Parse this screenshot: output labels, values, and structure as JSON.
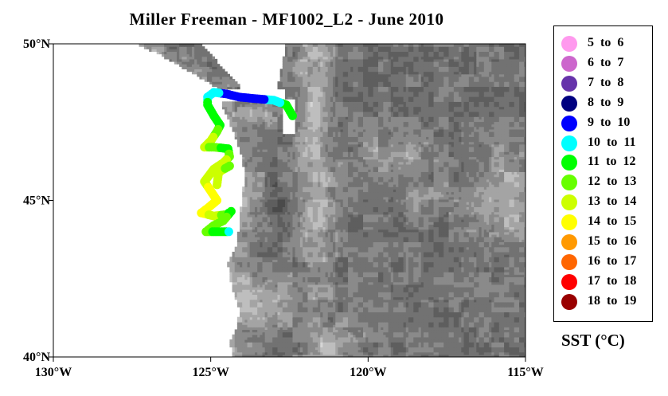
{
  "title": "Miller Freeman - MF1002_L2 - June 2010",
  "map": {
    "lon_range": [
      -130,
      -115
    ],
    "lat_range": [
      40,
      50
    ],
    "x_ticks": [
      {
        "value": -130,
        "label": "130°W"
      },
      {
        "value": -125,
        "label": "125°W"
      },
      {
        "value": -120,
        "label": "120°W"
      },
      {
        "value": -115,
        "label": "115°W"
      }
    ],
    "y_ticks": [
      {
        "value": 50,
        "label": "50°N"
      },
      {
        "value": 45,
        "label": "45°N"
      },
      {
        "value": 40,
        "label": "40°N"
      }
    ],
    "ocean_color": "#ffffff",
    "terrain_colors": [
      "#4a4a4a",
      "#5e5e5e",
      "#727272",
      "#8a8a8a",
      "#a4a4a4",
      "#bebebe",
      "#d6d6d6"
    ],
    "cruise_track": [
      {
        "lon": -122.4,
        "lat": 47.7,
        "bin": 6
      },
      {
        "lon": -122.6,
        "lat": 48.05,
        "bin": 6
      },
      {
        "lon": -123.0,
        "lat": 48.2,
        "bin": 5
      },
      {
        "lon": -123.6,
        "lat": 48.25,
        "bin": 4
      },
      {
        "lon": -124.1,
        "lat": 48.3,
        "bin": 4
      },
      {
        "lon": -124.5,
        "lat": 48.4,
        "bin": 4
      },
      {
        "lon": -124.9,
        "lat": 48.45,
        "bin": 5
      },
      {
        "lon": -125.1,
        "lat": 48.3,
        "bin": 5
      },
      {
        "lon": -125.1,
        "lat": 48.05,
        "bin": 6
      },
      {
        "lon": -124.9,
        "lat": 47.7,
        "bin": 6
      },
      {
        "lon": -124.7,
        "lat": 47.4,
        "bin": 6
      },
      {
        "lon": -124.8,
        "lat": 47.2,
        "bin": 7
      },
      {
        "lon": -125.0,
        "lat": 46.9,
        "bin": 8
      },
      {
        "lon": -125.2,
        "lat": 46.7,
        "bin": 8
      },
      {
        "lon": -124.9,
        "lat": 46.7,
        "bin": 7
      },
      {
        "lon": -124.45,
        "lat": 46.65,
        "bin": 6
      },
      {
        "lon": -124.4,
        "lat": 46.4,
        "bin": 7
      },
      {
        "lon": -124.6,
        "lat": 46.2,
        "bin": 8
      },
      {
        "lon": -124.9,
        "lat": 46.0,
        "bin": 8
      },
      {
        "lon": -125.2,
        "lat": 45.6,
        "bin": 8
      },
      {
        "lon": -125.0,
        "lat": 45.3,
        "bin": 9
      },
      {
        "lon": -124.8,
        "lat": 45.0,
        "bin": 9
      },
      {
        "lon": -125.1,
        "lat": 44.75,
        "bin": 9
      },
      {
        "lon": -125.3,
        "lat": 44.6,
        "bin": 9
      },
      {
        "lon": -124.9,
        "lat": 44.5,
        "bin": 8
      },
      {
        "lon": -124.5,
        "lat": 44.55,
        "bin": 7
      },
      {
        "lon": -124.35,
        "lat": 44.65,
        "bin": 6
      },
      {
        "lon": -124.6,
        "lat": 44.35,
        "bin": 7
      },
      {
        "lon": -124.9,
        "lat": 44.2,
        "bin": 7
      },
      {
        "lon": -125.15,
        "lat": 44.0,
        "bin": 7
      },
      {
        "lon": -124.8,
        "lat": 44.0,
        "bin": 6
      },
      {
        "lon": -124.5,
        "lat": 44.0,
        "bin": 6
      },
      {
        "lon": -124.35,
        "lat": 44.0,
        "bin": 5
      },
      {
        "lon": -124.8,
        "lat": 45.5,
        "bin": 8
      },
      {
        "lon": -124.75,
        "lat": 45.9,
        "bin": 8
      },
      {
        "lon": -124.4,
        "lat": 46.1,
        "bin": 7
      }
    ]
  },
  "legend": {
    "title": "SST (°C)",
    "items": [
      {
        "label": "5  to  6",
        "color": "#ff99ee"
      },
      {
        "label": "6  to  7",
        "color": "#cc66cc"
      },
      {
        "label": "7  to  8",
        "color": "#6633aa"
      },
      {
        "label": "8  to  9",
        "color": "#000080"
      },
      {
        "label": "9  to  10",
        "color": "#0000ff"
      },
      {
        "label": "10  to  11",
        "color": "#00ffff"
      },
      {
        "label": "11  to  12",
        "color": "#00ff00"
      },
      {
        "label": "12  to  13",
        "color": "#66ff00"
      },
      {
        "label": "13  to  14",
        "color": "#ccff00"
      },
      {
        "label": "14  to  15",
        "color": "#ffff00"
      },
      {
        "label": "15  to  16",
        "color": "#ff9900"
      },
      {
        "label": "16  to  17",
        "color": "#ff6600"
      },
      {
        "label": "17  to  18",
        "color": "#ff0000"
      },
      {
        "label": "18  to  19",
        "color": "#990000"
      }
    ]
  }
}
